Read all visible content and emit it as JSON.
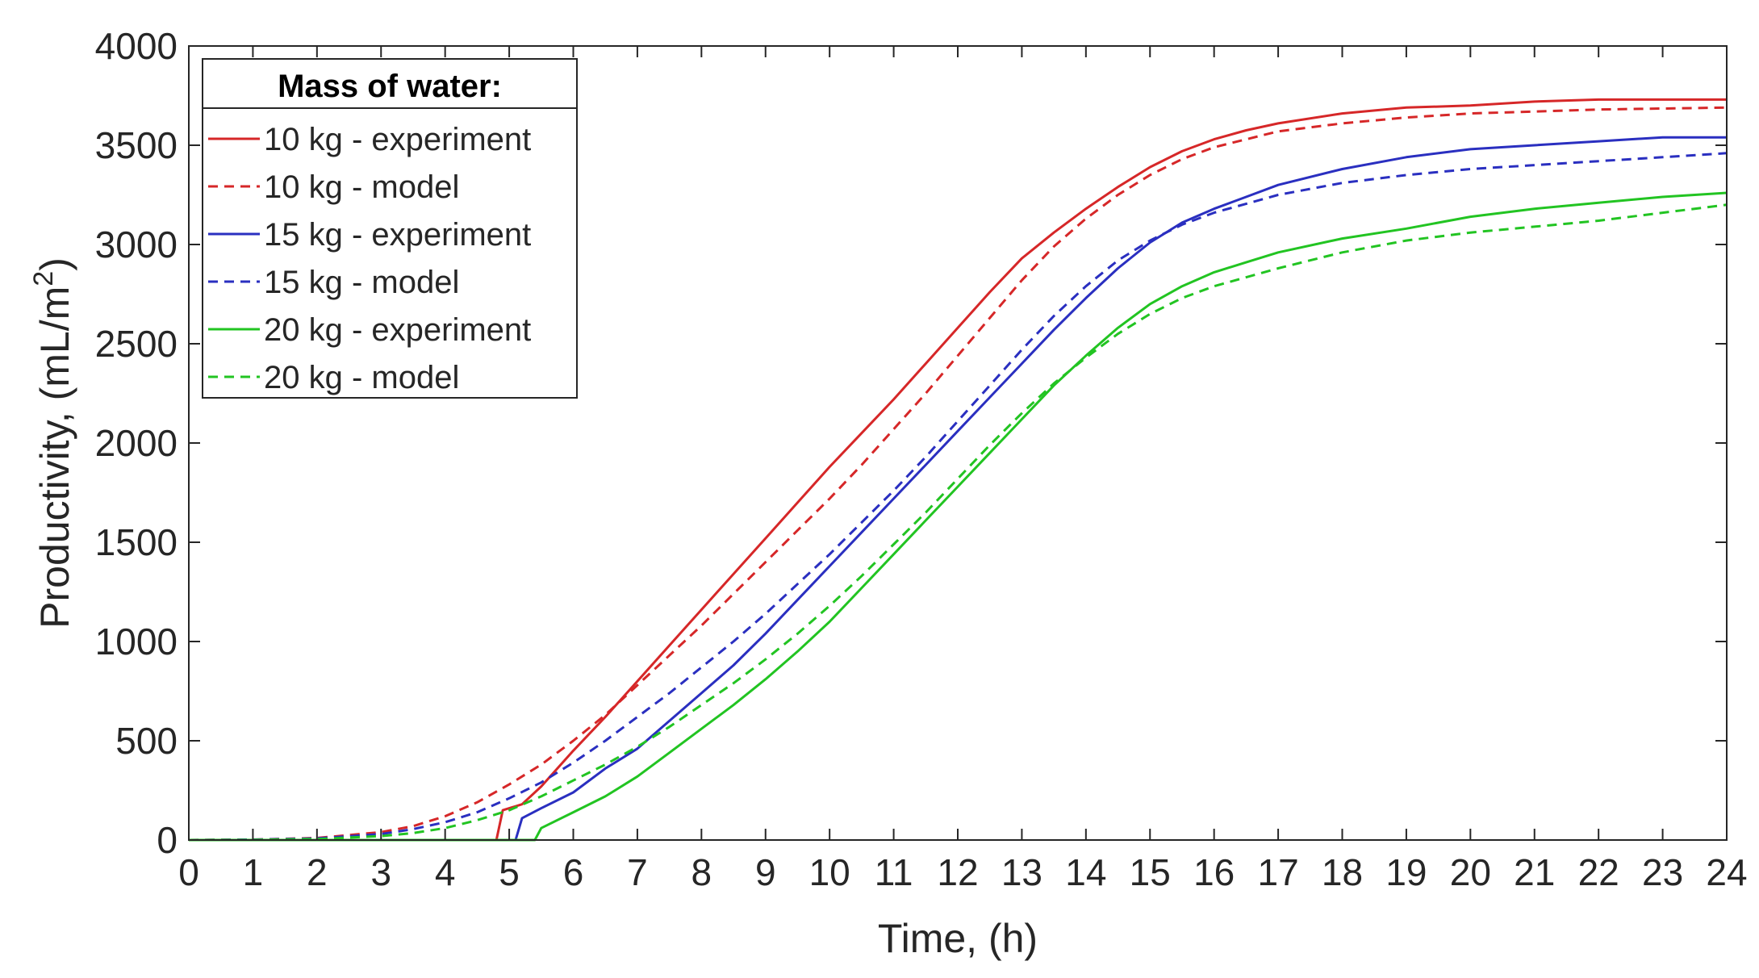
{
  "chart_data": {
    "type": "line",
    "xlabel": "Time, (h)",
    "ylabel_main": "Productivity, (mL/m",
    "ylabel_sup": "2",
    "ylabel_end": ")",
    "xlim": [
      0,
      24
    ],
    "ylim": [
      0,
      4000
    ],
    "xticks": [
      0,
      1,
      2,
      3,
      4,
      5,
      6,
      7,
      8,
      9,
      10,
      11,
      12,
      13,
      14,
      15,
      16,
      17,
      18,
      19,
      20,
      21,
      22,
      23,
      24
    ],
    "yticks": [
      0,
      500,
      1000,
      1500,
      2000,
      2500,
      3000,
      3500,
      4000
    ],
    "grid": false,
    "legend_title": "Mass of water:",
    "legend_position": "top-left",
    "series": [
      {
        "name": "10 kg - experiment",
        "color": "#d62728",
        "dash": "solid",
        "x": [
          0,
          4.8,
          4.9,
          5.2,
          5.5,
          6,
          6.5,
          7,
          7.5,
          8,
          8.5,
          9,
          9.5,
          10,
          10.5,
          11,
          11.5,
          12,
          12.5,
          13,
          13.5,
          14,
          14.5,
          15,
          15.5,
          16,
          16.5,
          17,
          18,
          19,
          20,
          21,
          22,
          23,
          24
        ],
        "y": [
          0,
          0,
          150,
          180,
          270,
          450,
          620,
          800,
          980,
          1160,
          1340,
          1520,
          1700,
          1880,
          2050,
          2220,
          2400,
          2580,
          2760,
          2930,
          3060,
          3180,
          3290,
          3390,
          3470,
          3530,
          3575,
          3610,
          3660,
          3690,
          3700,
          3720,
          3730,
          3730,
          3730
        ]
      },
      {
        "name": "10 kg - model",
        "color": "#d62728",
        "dash": "dashed",
        "x": [
          0,
          1,
          2,
          3,
          3.5,
          4,
          4.5,
          5,
          5.5,
          6,
          6.5,
          7,
          7.5,
          8,
          8.5,
          9,
          9.5,
          10,
          10.5,
          11,
          11.5,
          12,
          12.5,
          13,
          13.5,
          14,
          14.5,
          15,
          15.5,
          16,
          17,
          18,
          19,
          20,
          21,
          22,
          23,
          24
        ],
        "y": [
          0,
          2,
          10,
          40,
          70,
          120,
          190,
          280,
          380,
          500,
          630,
          780,
          930,
          1080,
          1240,
          1400,
          1560,
          1720,
          1890,
          2070,
          2250,
          2440,
          2630,
          2820,
          2990,
          3130,
          3250,
          3350,
          3430,
          3490,
          3570,
          3610,
          3640,
          3660,
          3670,
          3680,
          3685,
          3690
        ]
      },
      {
        "name": "15 kg - experiment",
        "color": "#2a2fc0",
        "dash": "solid",
        "x": [
          0,
          5.1,
          5.2,
          5.5,
          6,
          6.5,
          7,
          7.5,
          8,
          8.5,
          9,
          9.5,
          10,
          10.5,
          11,
          11.5,
          12,
          12.5,
          13,
          13.5,
          14,
          14.5,
          15,
          15.5,
          16,
          16.5,
          17,
          18,
          19,
          20,
          21,
          22,
          23,
          24
        ],
        "y": [
          0,
          0,
          110,
          160,
          240,
          360,
          460,
          600,
          740,
          880,
          1040,
          1210,
          1380,
          1550,
          1720,
          1890,
          2060,
          2230,
          2400,
          2570,
          2730,
          2880,
          3010,
          3110,
          3180,
          3240,
          3300,
          3380,
          3440,
          3480,
          3500,
          3520,
          3540,
          3540
        ]
      },
      {
        "name": "15 kg - model",
        "color": "#2a2fc0",
        "dash": "dashed",
        "x": [
          0,
          1,
          2,
          3,
          3.5,
          4,
          4.5,
          5,
          5.5,
          6,
          6.5,
          7,
          7.5,
          8,
          8.5,
          9,
          9.5,
          10,
          10.5,
          11,
          11.5,
          12,
          12.5,
          13,
          13.5,
          14,
          14.5,
          15,
          15.5,
          16,
          17,
          18,
          19,
          20,
          21,
          22,
          23,
          24
        ],
        "y": [
          0,
          2,
          8,
          30,
          55,
          90,
          140,
          210,
          290,
          390,
          500,
          620,
          740,
          870,
          1000,
          1140,
          1290,
          1440,
          1600,
          1760,
          1930,
          2110,
          2290,
          2470,
          2640,
          2790,
          2920,
          3020,
          3100,
          3160,
          3250,
          3310,
          3350,
          3380,
          3400,
          3420,
          3440,
          3460
        ]
      },
      {
        "name": "20 kg - experiment",
        "color": "#22c422",
        "dash": "solid",
        "x": [
          0,
          5.4,
          5.5,
          6,
          6.5,
          7,
          7.5,
          8,
          8.5,
          9,
          9.5,
          10,
          10.5,
          11,
          11.5,
          12,
          12.5,
          13,
          13.5,
          14,
          14.5,
          15,
          15.5,
          16,
          16.5,
          17,
          18,
          19,
          20,
          21,
          22,
          23,
          24
        ],
        "y": [
          0,
          0,
          60,
          140,
          220,
          320,
          440,
          560,
          680,
          810,
          950,
          1100,
          1270,
          1440,
          1610,
          1780,
          1950,
          2120,
          2290,
          2440,
          2580,
          2700,
          2790,
          2860,
          2910,
          2960,
          3030,
          3080,
          3140,
          3180,
          3210,
          3240,
          3260
        ]
      },
      {
        "name": "20 kg - model",
        "color": "#22c422",
        "dash": "dashed",
        "x": [
          0,
          1,
          2,
          3,
          3.5,
          4,
          4.5,
          5,
          5.5,
          6,
          6.5,
          7,
          7.5,
          8,
          8.5,
          9,
          9.5,
          10,
          10.5,
          11,
          11.5,
          12,
          12.5,
          13,
          13.5,
          14,
          14.5,
          15,
          15.5,
          16,
          17,
          18,
          19,
          20,
          21,
          22,
          23,
          24
        ],
        "y": [
          0,
          1,
          5,
          20,
          35,
          60,
          100,
          150,
          220,
          300,
          380,
          470,
          570,
          680,
          790,
          910,
          1040,
          1180,
          1330,
          1490,
          1650,
          1820,
          1990,
          2150,
          2300,
          2430,
          2550,
          2650,
          2730,
          2790,
          2880,
          2960,
          3020,
          3060,
          3090,
          3120,
          3160,
          3200
        ]
      }
    ]
  }
}
